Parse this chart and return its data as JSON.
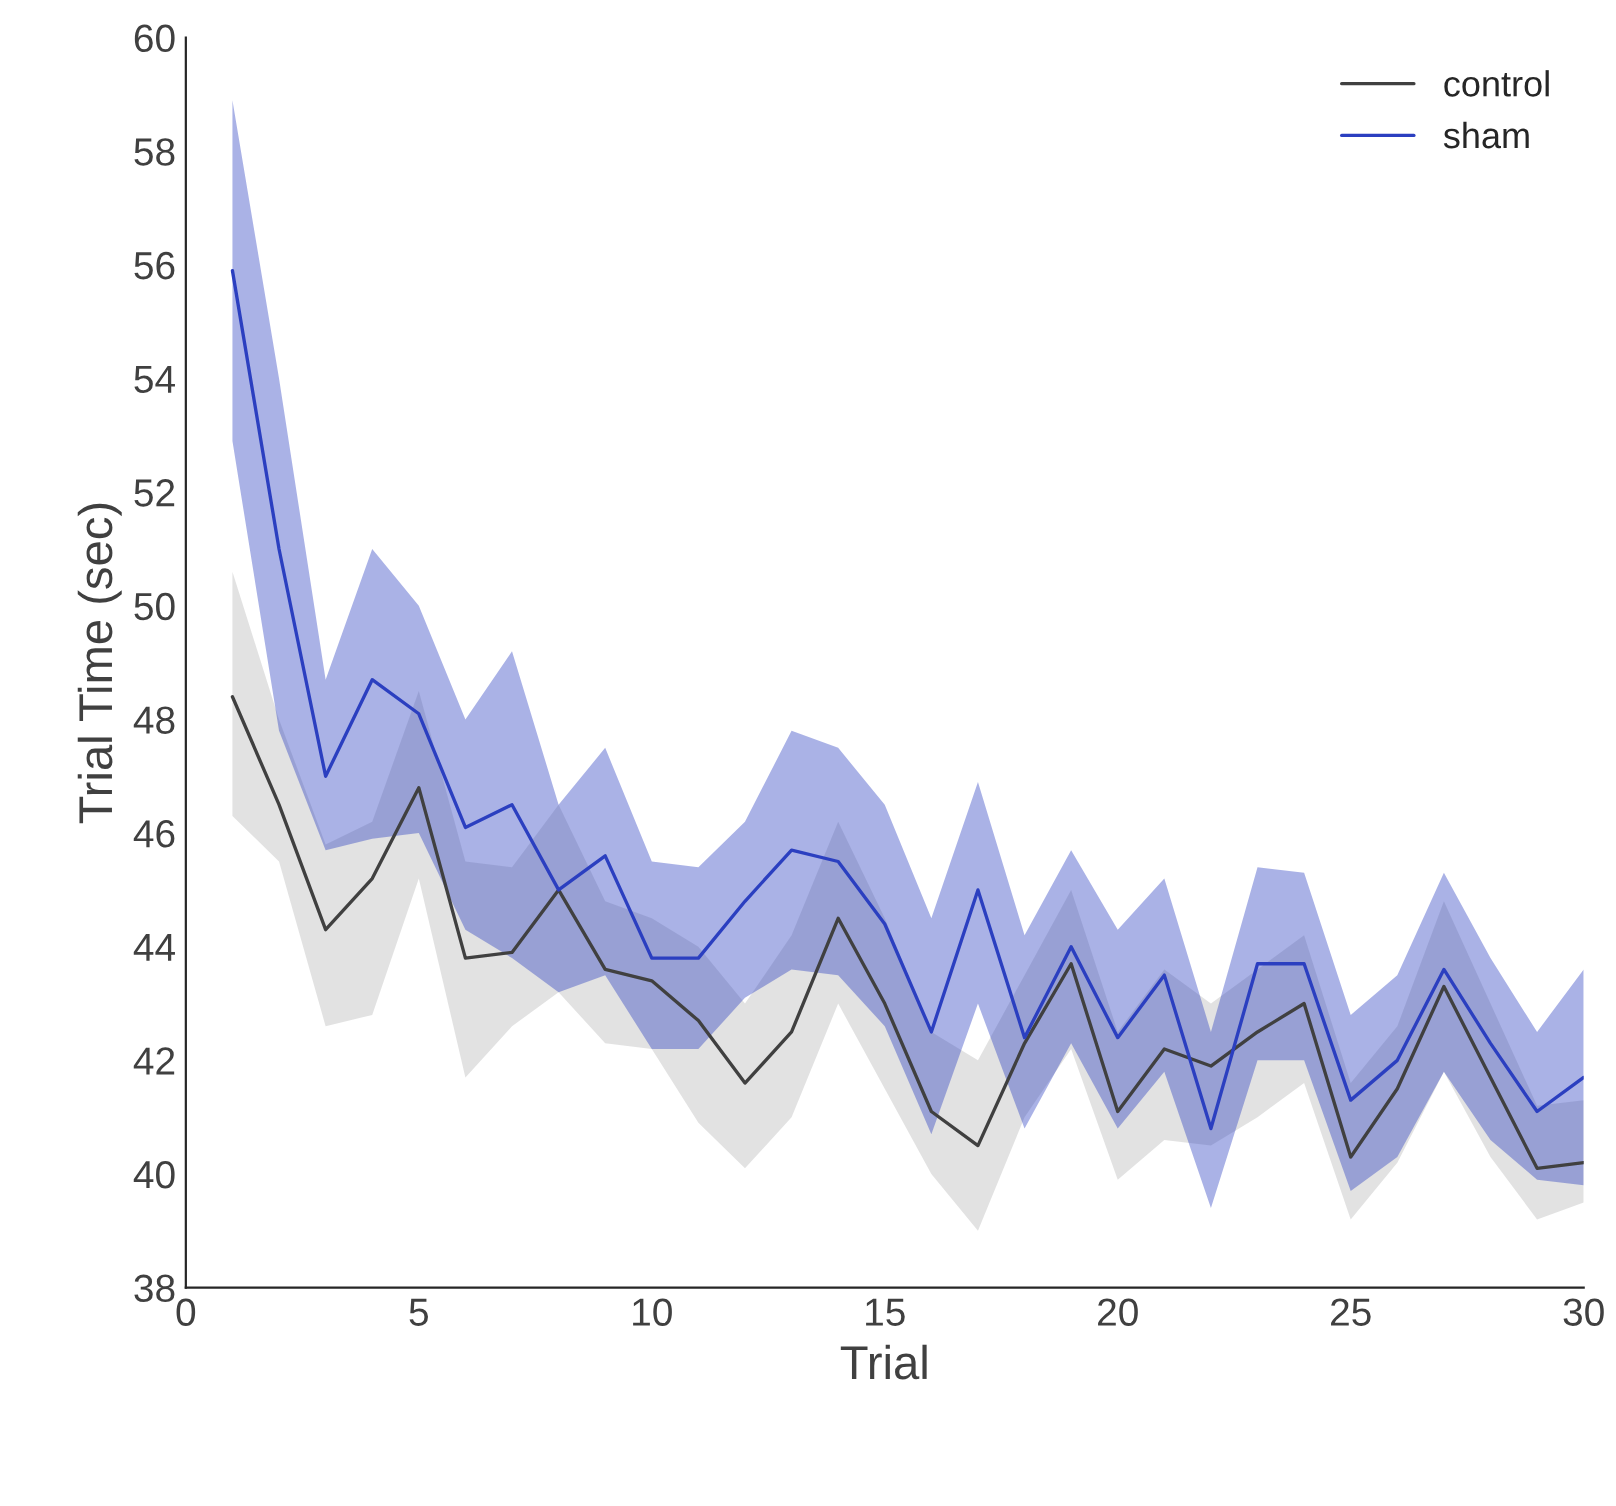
{
  "chart_data": {
    "type": "line",
    "xlabel": "Trial",
    "ylabel": "Trial Time (sec)",
    "x": [
      1,
      2,
      3,
      4,
      5,
      6,
      7,
      8,
      9,
      10,
      11,
      12,
      13,
      14,
      15,
      16,
      17,
      18,
      19,
      20,
      21,
      22,
      23,
      24,
      25,
      26,
      27,
      28,
      29,
      30
    ],
    "series": [
      {
        "name": "control",
        "color": "#404040",
        "values": [
          48.4,
          46.5,
          44.3,
          45.2,
          46.8,
          43.8,
          43.9,
          45.0,
          43.6,
          43.4,
          42.7,
          41.6,
          42.5,
          44.5,
          43.0,
          41.1,
          40.5,
          42.3,
          43.7,
          41.1,
          42.2,
          41.9,
          42.5,
          43.0,
          40.3,
          41.5,
          43.3,
          41.7,
          40.1,
          40.2
        ],
        "lower": [
          46.3,
          45.5,
          42.6,
          42.8,
          45.2,
          41.7,
          42.6,
          43.2,
          42.3,
          42.2,
          40.9,
          40.1,
          41.0,
          43.0,
          41.5,
          40.0,
          39.0,
          41.0,
          42.2,
          39.9,
          40.6,
          40.5,
          41.0,
          41.6,
          39.2,
          40.2,
          41.8,
          40.3,
          39.2,
          39.5
        ],
        "upper": [
          50.6,
          48.0,
          45.8,
          46.2,
          48.5,
          45.5,
          45.4,
          46.5,
          44.8,
          44.5,
          44.0,
          43.0,
          44.2,
          46.2,
          44.5,
          42.5,
          42.0,
          43.5,
          45.0,
          42.5,
          43.6,
          43.0,
          43.6,
          44.2,
          41.6,
          42.6,
          44.8,
          43.0,
          41.2,
          41.3
        ]
      },
      {
        "name": "sham",
        "color": "#2b3fc0",
        "values": [
          55.9,
          51.0,
          47.0,
          48.7,
          48.1,
          46.1,
          46.5,
          45.0,
          45.6,
          43.8,
          43.8,
          44.8,
          45.7,
          45.5,
          44.4,
          42.5,
          45.0,
          42.4,
          44.0,
          42.4,
          43.5,
          40.8,
          43.7,
          43.7,
          41.3,
          42.0,
          43.6,
          42.3,
          41.1,
          41.7
        ],
        "lower": [
          52.9,
          47.8,
          45.7,
          45.9,
          46.0,
          44.3,
          43.8,
          43.2,
          43.5,
          42.2,
          42.2,
          43.1,
          43.6,
          43.5,
          42.6,
          40.7,
          43.0,
          40.8,
          42.3,
          40.8,
          41.8,
          39.4,
          42.0,
          42.0,
          39.7,
          40.3,
          41.8,
          40.6,
          39.9,
          39.8
        ],
        "upper": [
          58.9,
          54.0,
          48.7,
          51.0,
          50.0,
          48.0,
          49.2,
          46.5,
          47.5,
          45.5,
          45.4,
          46.2,
          47.8,
          47.5,
          46.5,
          44.5,
          46.9,
          44.2,
          45.7,
          44.3,
          45.2,
          42.5,
          45.4,
          45.3,
          42.8,
          43.5,
          45.3,
          43.8,
          42.5,
          43.6
        ]
      }
    ],
    "xlim": [
      0,
      30
    ],
    "xticks": [
      0,
      5,
      10,
      15,
      20,
      25,
      30
    ],
    "ylim": [
      38,
      60
    ],
    "yticks": [
      38,
      40,
      42,
      44,
      46,
      48,
      50,
      52,
      54,
      56,
      58,
      60
    ],
    "legend": "top right",
    "grid": false
  }
}
